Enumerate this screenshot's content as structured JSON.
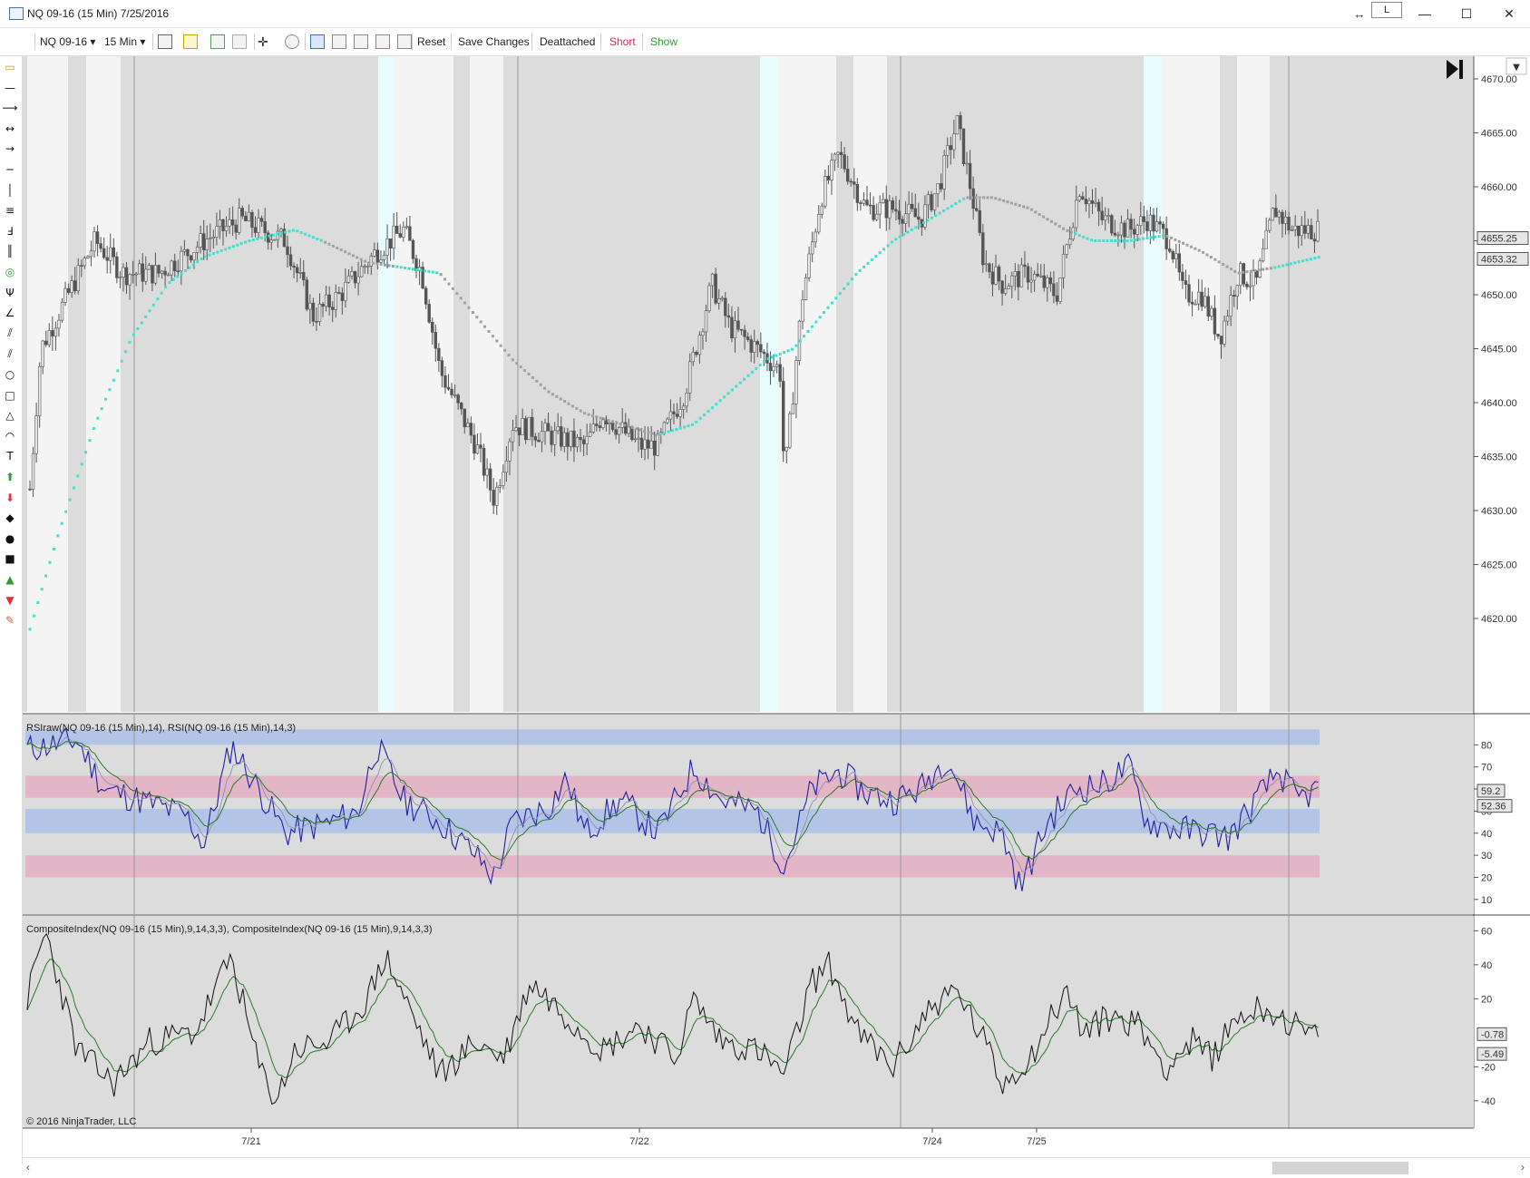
{
  "window": {
    "title": "NQ 09-16 (15 Min)  7/25/2016",
    "link_badge": "L",
    "buttons": {
      "minimize": "—",
      "maximize": "☐",
      "close": "✕"
    }
  },
  "toolbar": {
    "instrument": "NQ 09-16",
    "interval": "15 Min",
    "reset_label": "Reset",
    "save_label": "Save Changes",
    "deattach_label": "Deattached",
    "short_label": "Short",
    "show_label": "Show",
    "colors": {
      "short": "#e0245e",
      "show": "#2e9b2e"
    }
  },
  "drawing_tools": [
    "ruler-icon",
    "line-icon",
    "ray-icon",
    "extended-line-icon",
    "arrow-line-icon",
    "horizontal-line-icon",
    "vertical-line-icon",
    "fib-retracement-icon",
    "fib-extension-icon",
    "fib-timezones-icon",
    "fib-circle-icon",
    "andrews-pitchfork-icon",
    "gann-fan-icon",
    "regression-channel-icon",
    "trend-channel-icon",
    "ellipse-icon",
    "rectangle-icon",
    "triangle-icon",
    "arc-icon",
    "text-icon",
    "arrow-up-icon",
    "arrow-down-icon",
    "diamond-icon",
    "dot-icon",
    "square-icon",
    "triangle-up-icon",
    "triangle-down-icon",
    "region-highlight-icon"
  ],
  "price_panel": {
    "axis_labels": [
      "4670.00",
      "4665.00",
      "4660.00",
      "4655.00",
      "4650.00",
      "4645.00",
      "4640.00",
      "4635.00",
      "4630.00",
      "4625.00",
      "4620.00"
    ],
    "axis_values": [
      4670,
      4665,
      4660,
      4655,
      4650,
      4645,
      4640,
      4635,
      4630,
      4625,
      4620
    ],
    "last_price": "4655.25",
    "ma_value": "4653.32",
    "colors": {
      "background": "#dcdcdc",
      "session": "#f4f4f4",
      "premarket": "#e8fbfd",
      "ma_up": "#40e0d0",
      "ma_flat": "#a0a0a0",
      "candle": "#555555"
    }
  },
  "rsi_panel": {
    "label": "RSIraw(NQ 09-16 (15 Min),14), RSI(NQ 09-16 (15 Min),14,3)",
    "axis_labels": [
      "80",
      "70",
      "60",
      "50",
      "40",
      "30",
      "20",
      "10"
    ],
    "axis_values": [
      80,
      70,
      60,
      50,
      40,
      30,
      20,
      10
    ],
    "value_a": "59.2",
    "value_b": "52.36",
    "colors": {
      "blue_band": "#b4c4e6",
      "red_band": "#e2b6c6",
      "raw": "#1f1fa0",
      "smooth": "#2a7a2a",
      "signal": "#9090b0"
    }
  },
  "composite_panel": {
    "label": "CompositeIndex(NQ 09-16 (15 Min),9,14,3,3), CompositeIndex(NQ 09-16 (15 Min),9,14,3,3)",
    "axis_labels": [
      "60",
      "40",
      "20",
      "-20",
      "-40"
    ],
    "axis_values": [
      60,
      40,
      20,
      -20,
      -40
    ],
    "value_a": "-0.78",
    "value_b": "-5.49",
    "colors": {
      "line_a": "#111111",
      "line_b": "#2a7a2a"
    }
  },
  "time_axis": [
    "7/21",
    "7/22",
    "7/24",
    "7/25"
  ],
  "copyright": "© 2016 NinjaTrader, LLC"
}
